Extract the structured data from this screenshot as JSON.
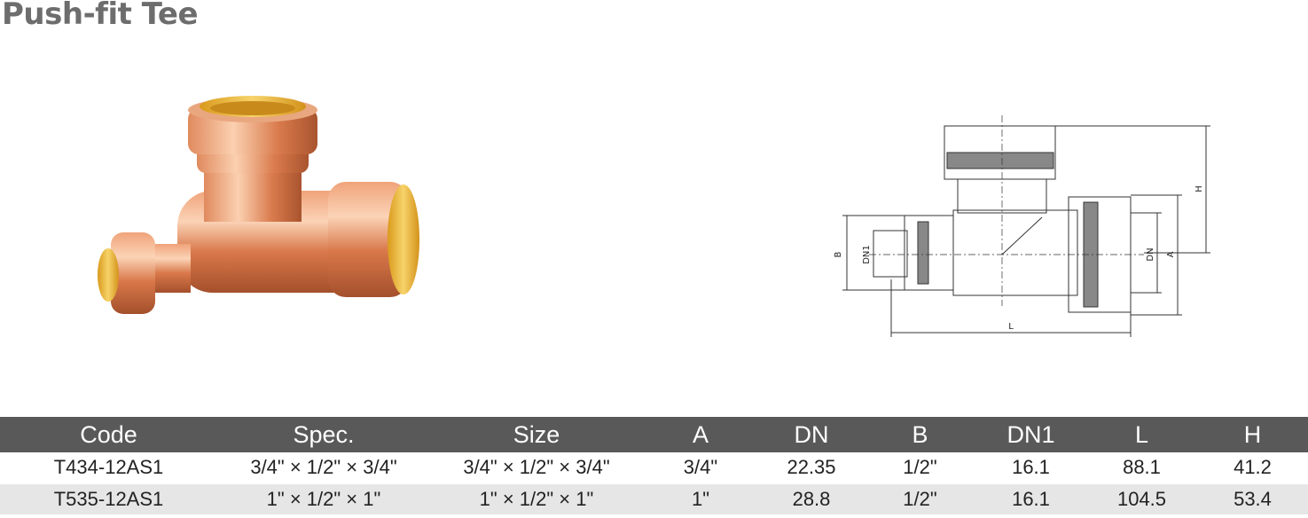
{
  "header": {
    "title": "Push-fit Tee"
  },
  "drawing": {
    "labels": [
      "B",
      "DN1",
      "DN",
      "A",
      "H",
      "L"
    ]
  },
  "table": {
    "columns": [
      "Code",
      "Spec.",
      "Size",
      "A",
      "DN",
      "B",
      "DN1",
      "L",
      "H"
    ],
    "rows": [
      [
        "T434-12AS1",
        "3/4\" × 1/2\" × 3/4\"",
        "3/4\" × 1/2\" × 3/4\"",
        "3/4\"",
        "22.35",
        "1/2\"",
        "16.1",
        "88.1",
        "41.2"
      ],
      [
        "T535-12AS1",
        "1\" × 1/2\" × 1\"",
        "1\" × 1/2\" × 1\"",
        "1\"",
        "28.8",
        "1/2\"",
        "16.1",
        "104.5",
        "53.4"
      ]
    ]
  }
}
